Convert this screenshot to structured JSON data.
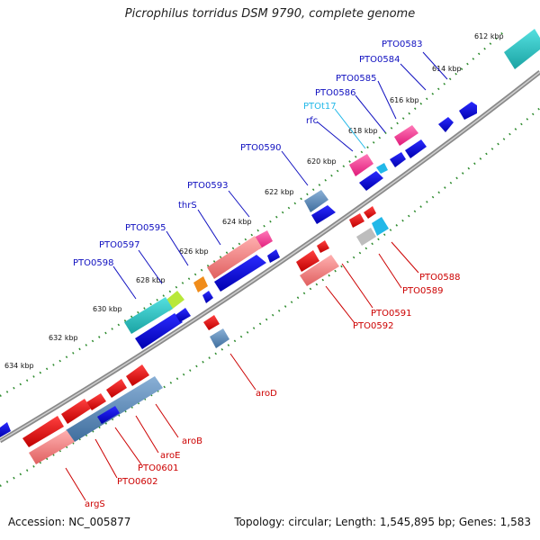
{
  "title": "Picrophilus torridus DSM 9790, complete genome",
  "footer": {
    "accession": "Accession: NC_005877",
    "topology": "Topology: circular; Length: 1,545,895 bp; Genes: 1,583"
  },
  "colors": {
    "backbone": "#7f7f7f",
    "dots": "#2e8b2e",
    "upper_label": "#1010c0",
    "lower_label": "#cc0000",
    "trna_label": "#22b8e8"
  },
  "ruler_labels": [
    "612 kbp",
    "614 kbp",
    "616 kbp",
    "618 kbp",
    "620 kbp",
    "622 kbp",
    "624 kbp",
    "626 kbp",
    "628 kbp",
    "630 kbp",
    "632 kbp",
    "634 kbp"
  ],
  "upper_labels": [
    {
      "text": "PTO0583",
      "color": "blue"
    },
    {
      "text": "PTO0584",
      "color": "blue"
    },
    {
      "text": "PTO0585",
      "color": "blue"
    },
    {
      "text": "PTO0586",
      "color": "blue"
    },
    {
      "text": "PTOt17",
      "color": "cyan"
    },
    {
      "text": "rfc",
      "color": "blue"
    },
    {
      "text": "PTO0590",
      "color": "blue"
    },
    {
      "text": "PTO0593",
      "color": "blue"
    },
    {
      "text": "thrS",
      "color": "blue"
    },
    {
      "text": "PTO0595",
      "color": "blue"
    },
    {
      "text": "PTO0597",
      "color": "blue"
    },
    {
      "text": "PTO0598",
      "color": "blue"
    }
  ],
  "lower_labels": [
    "PTO0588",
    "PTO0589",
    "PTO0591",
    "PTO0592",
    "aroD",
    "aroB",
    "aroE",
    "PTO0601",
    "PTO0602",
    "argS"
  ]
}
